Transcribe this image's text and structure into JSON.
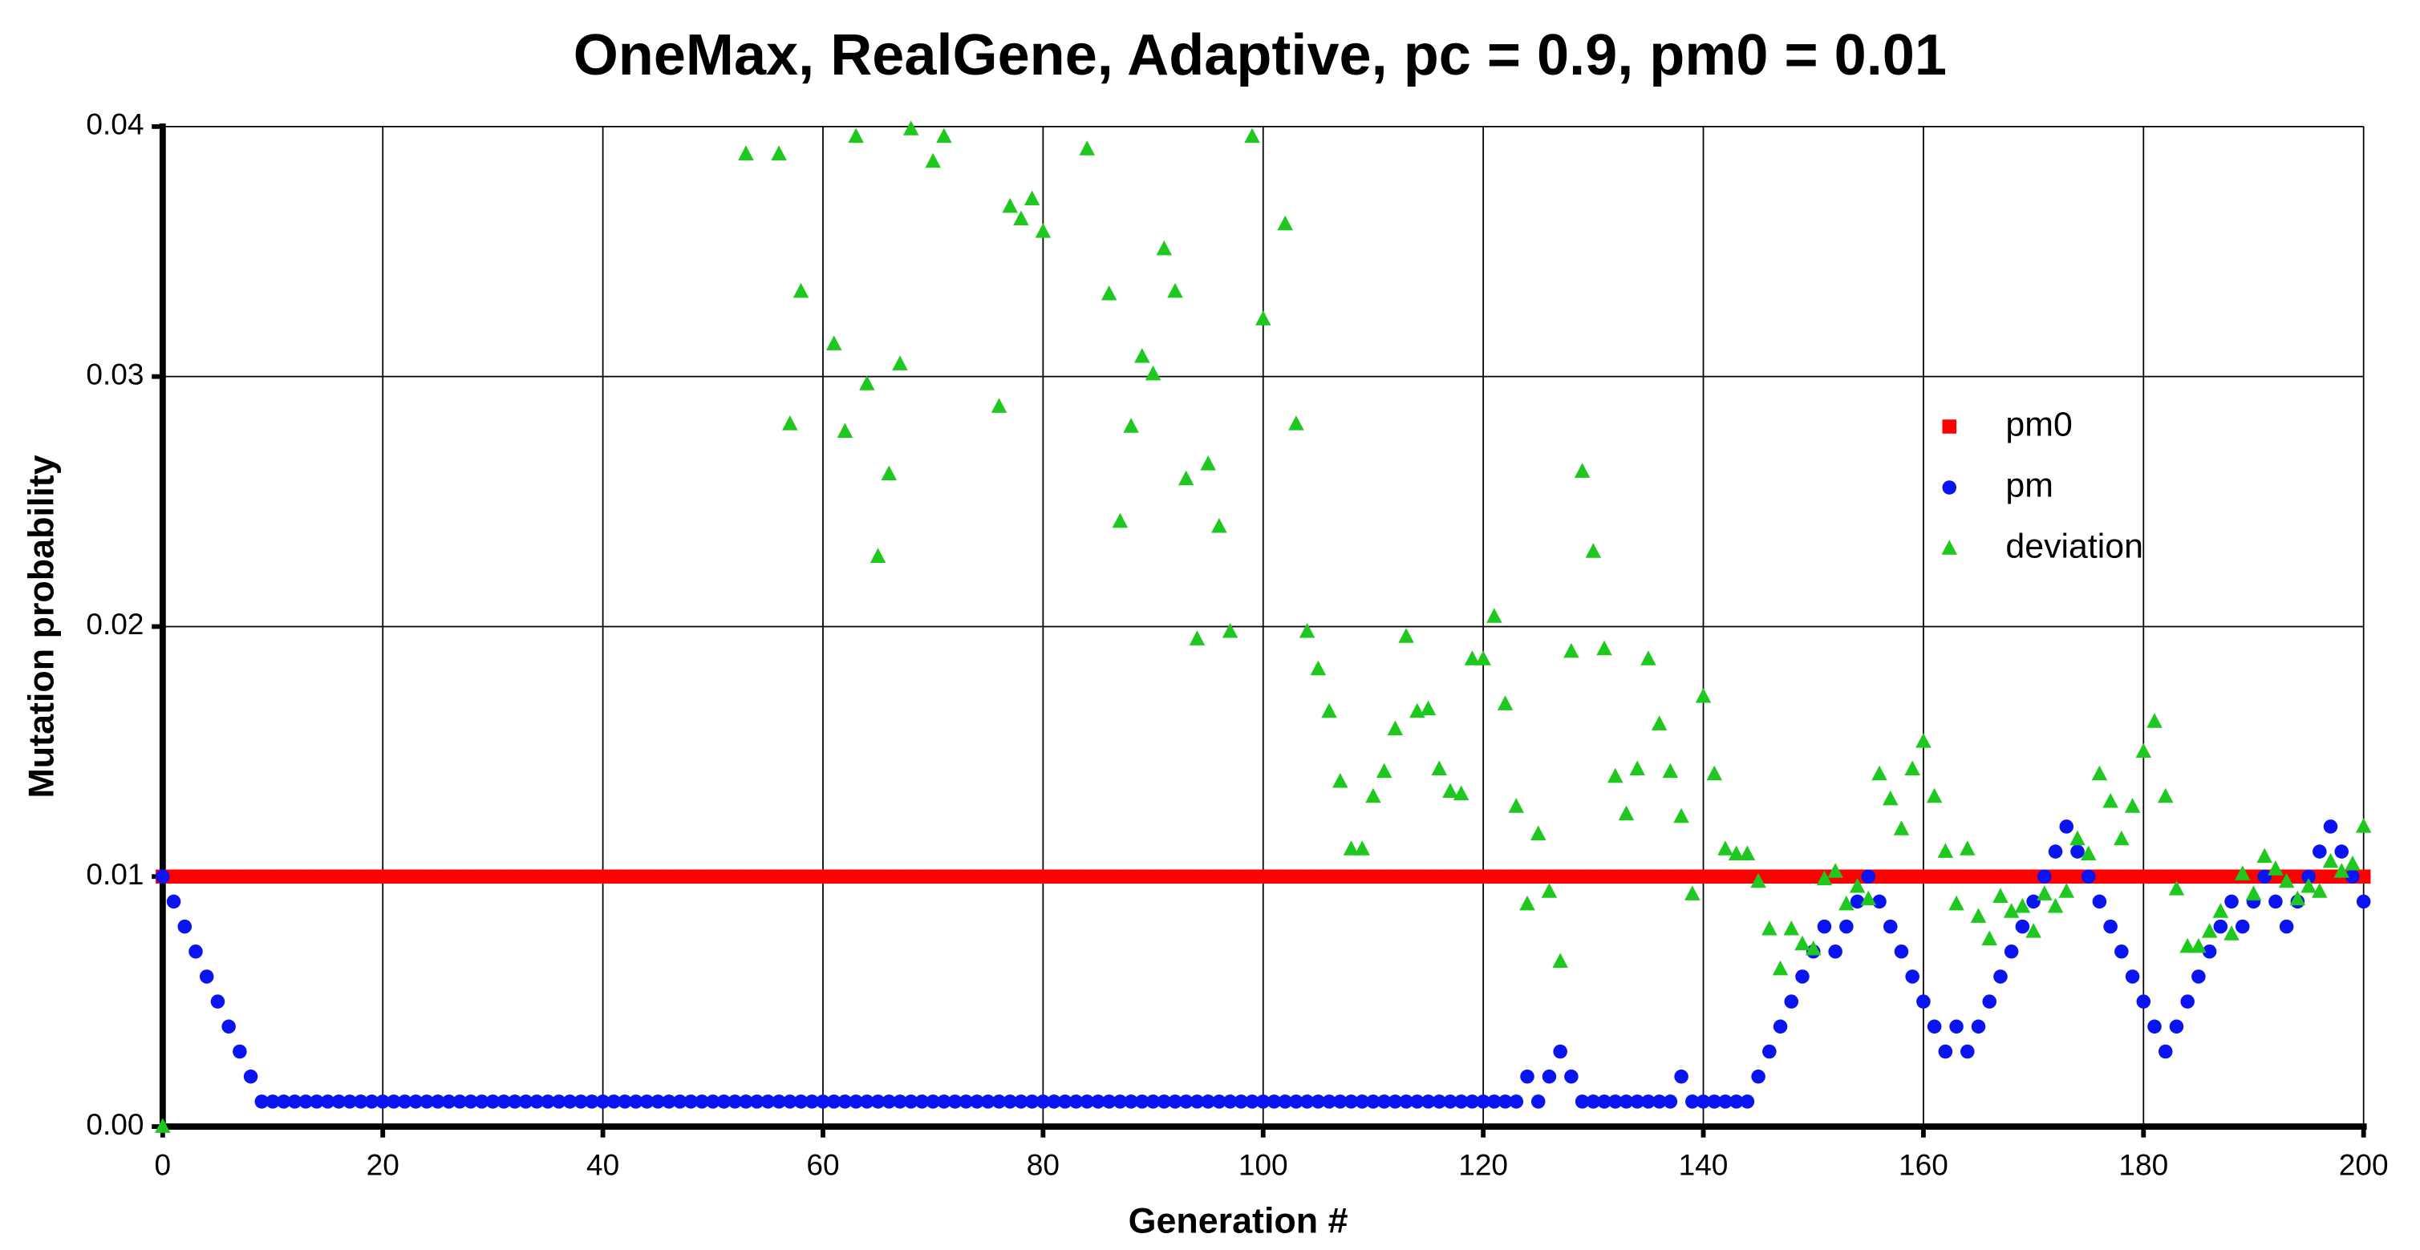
{
  "chart_data": {
    "type": "scatter",
    "title": "OneMax, RealGene, Adaptive, pc = 0.9, pm0 = 0.01",
    "xlabel": "Generation #",
    "ylabel": "Mutation probability",
    "xlim": [
      0,
      200
    ],
    "ylim": [
      0,
      0.04
    ],
    "xticks": [
      0,
      20,
      40,
      60,
      80,
      100,
      120,
      140,
      160,
      180,
      200
    ],
    "yticks": [
      {
        "value": 0,
        "label": "0.00"
      },
      0.01,
      0.02,
      0.03,
      0.04
    ],
    "grid": true,
    "legend_position": "upper right",
    "x": [
      0,
      1,
      2,
      3,
      4,
      5,
      6,
      7,
      8,
      9,
      10,
      11,
      12,
      13,
      14,
      15,
      16,
      17,
      18,
      19,
      20,
      21,
      22,
      23,
      24,
      25,
      26,
      27,
      28,
      29,
      30,
      31,
      32,
      33,
      34,
      35,
      36,
      37,
      38,
      39,
      40,
      41,
      42,
      43,
      44,
      45,
      46,
      47,
      48,
      49,
      50,
      51,
      52,
      53,
      54,
      55,
      56,
      57,
      58,
      59,
      60,
      61,
      62,
      63,
      64,
      65,
      66,
      67,
      68,
      69,
      70,
      71,
      72,
      73,
      74,
      75,
      76,
      77,
      78,
      79,
      80,
      81,
      82,
      83,
      84,
      85,
      86,
      87,
      88,
      89,
      90,
      91,
      92,
      93,
      94,
      95,
      96,
      97,
      98,
      99,
      100,
      101,
      102,
      103,
      104,
      105,
      106,
      107,
      108,
      109,
      110,
      111,
      112,
      113,
      114,
      115,
      116,
      117,
      118,
      119,
      120,
      121,
      122,
      123,
      124,
      125,
      126,
      127,
      128,
      129,
      130,
      131,
      132,
      133,
      134,
      135,
      136,
      137,
      138,
      139,
      140,
      141,
      142,
      143,
      144,
      145,
      146,
      147,
      148,
      149,
      150,
      151,
      152,
      153,
      154,
      155,
      156,
      157,
      158,
      159,
      160,
      161,
      162,
      163,
      164,
      165,
      166,
      167,
      168,
      169,
      170,
      171,
      172,
      173,
      174,
      175,
      176,
      177,
      178,
      179,
      180,
      181,
      182,
      183,
      184,
      185,
      186,
      187,
      188,
      189,
      190,
      191,
      192,
      193,
      194,
      195,
      196,
      197,
      198,
      199,
      200
    ],
    "series": [
      {
        "name": "pm0",
        "color": "#ff0000",
        "marker": "square",
        "values": [
          0.01,
          0.01,
          0.01,
          0.01,
          0.01,
          0.01,
          0.01,
          0.01,
          0.01,
          0.01,
          0.01,
          0.01,
          0.01,
          0.01,
          0.01,
          0.01,
          0.01,
          0.01,
          0.01,
          0.01,
          0.01,
          0.01,
          0.01,
          0.01,
          0.01,
          0.01,
          0.01,
          0.01,
          0.01,
          0.01,
          0.01,
          0.01,
          0.01,
          0.01,
          0.01,
          0.01,
          0.01,
          0.01,
          0.01,
          0.01,
          0.01,
          0.01,
          0.01,
          0.01,
          0.01,
          0.01,
          0.01,
          0.01,
          0.01,
          0.01,
          0.01,
          0.01,
          0.01,
          0.01,
          0.01,
          0.01,
          0.01,
          0.01,
          0.01,
          0.01,
          0.01,
          0.01,
          0.01,
          0.01,
          0.01,
          0.01,
          0.01,
          0.01,
          0.01,
          0.01,
          0.01,
          0.01,
          0.01,
          0.01,
          0.01,
          0.01,
          0.01,
          0.01,
          0.01,
          0.01,
          0.01,
          0.01,
          0.01,
          0.01,
          0.01,
          0.01,
          0.01,
          0.01,
          0.01,
          0.01,
          0.01,
          0.01,
          0.01,
          0.01,
          0.01,
          0.01,
          0.01,
          0.01,
          0.01,
          0.01,
          0.01,
          0.01,
          0.01,
          0.01,
          0.01,
          0.01,
          0.01,
          0.01,
          0.01,
          0.01,
          0.01,
          0.01,
          0.01,
          0.01,
          0.01,
          0.01,
          0.01,
          0.01,
          0.01,
          0.01,
          0.01,
          0.01,
          0.01,
          0.01,
          0.01,
          0.01,
          0.01,
          0.01,
          0.01,
          0.01,
          0.01,
          0.01,
          0.01,
          0.01,
          0.01,
          0.01,
          0.01,
          0.01,
          0.01,
          0.01,
          0.01,
          0.01,
          0.01,
          0.01,
          0.01,
          0.01,
          0.01,
          0.01,
          0.01,
          0.01,
          0.01,
          0.01,
          0.01,
          0.01,
          0.01,
          0.01,
          0.01,
          0.01,
          0.01,
          0.01,
          0.01,
          0.01,
          0.01,
          0.01,
          0.01,
          0.01,
          0.01,
          0.01,
          0.01,
          0.01,
          0.01,
          0.01,
          0.01,
          0.01,
          0.01,
          0.01,
          0.01,
          0.01,
          0.01,
          0.01,
          0.01,
          0.01,
          0.01,
          0.01,
          0.01,
          0.01,
          0.01,
          0.01,
          0.01,
          0.01,
          0.01,
          0.01,
          0.01,
          0.01,
          0.01,
          0.01,
          0.01,
          0.01,
          0.01,
          0.01,
          0.01
        ]
      },
      {
        "name": "pm",
        "color": "#0a14f0",
        "marker": "circle",
        "values": [
          0.01,
          0.009,
          0.008,
          0.007,
          0.006,
          0.005,
          0.004,
          0.003,
          0.002,
          0.001,
          0.001,
          0.001,
          0.001,
          0.001,
          0.001,
          0.001,
          0.001,
          0.001,
          0.001,
          0.001,
          0.001,
          0.001,
          0.001,
          0.001,
          0.001,
          0.001,
          0.001,
          0.001,
          0.001,
          0.001,
          0.001,
          0.001,
          0.001,
          0.001,
          0.001,
          0.001,
          0.001,
          0.001,
          0.001,
          0.001,
          0.001,
          0.001,
          0.001,
          0.001,
          0.001,
          0.001,
          0.001,
          0.001,
          0.001,
          0.001,
          0.001,
          0.001,
          0.001,
          0.001,
          0.001,
          0.001,
          0.001,
          0.001,
          0.001,
          0.001,
          0.001,
          0.001,
          0.001,
          0.001,
          0.001,
          0.001,
          0.001,
          0.001,
          0.001,
          0.001,
          0.001,
          0.001,
          0.001,
          0.001,
          0.001,
          0.001,
          0.001,
          0.001,
          0.001,
          0.001,
          0.001,
          0.001,
          0.001,
          0.001,
          0.001,
          0.001,
          0.001,
          0.001,
          0.001,
          0.001,
          0.001,
          0.001,
          0.001,
          0.001,
          0.001,
          0.001,
          0.001,
          0.001,
          0.001,
          0.001,
          0.001,
          0.001,
          0.001,
          0.001,
          0.001,
          0.001,
          0.001,
          0.001,
          0.001,
          0.001,
          0.001,
          0.001,
          0.001,
          0.001,
          0.001,
          0.001,
          0.001,
          0.001,
          0.001,
          0.001,
          0.001,
          0.001,
          0.001,
          0.001,
          0.002,
          0.001,
          0.002,
          0.003,
          0.002,
          0.001,
          0.001,
          0.001,
          0.001,
          0.001,
          0.001,
          0.001,
          0.001,
          0.001,
          0.002,
          0.001,
          0.001,
          0.001,
          0.001,
          0.001,
          0.001,
          0.002,
          0.003,
          0.004,
          0.005,
          0.006,
          0.007,
          0.008,
          0.007,
          0.008,
          0.009,
          0.01,
          0.009,
          0.008,
          0.007,
          0.006,
          0.005,
          0.004,
          0.003,
          0.004,
          0.003,
          0.004,
          0.005,
          0.006,
          0.007,
          0.008,
          0.009,
          0.01,
          0.011,
          0.012,
          0.011,
          0.01,
          0.009,
          0.008,
          0.007,
          0.006,
          0.005,
          0.004,
          0.003,
          0.004,
          0.005,
          0.006,
          0.007,
          0.008,
          0.009,
          0.008,
          0.009,
          0.01,
          0.009,
          0.008,
          0.009,
          0.01,
          0.011,
          0.012,
          0.011,
          0.01,
          0.009
        ]
      },
      {
        "name": "deviation",
        "color": "#1ec81e",
        "marker": "triangle",
        "values": [
          0,
          null,
          null,
          null,
          null,
          null,
          null,
          null,
          null,
          null,
          null,
          null,
          null,
          null,
          null,
          null,
          null,
          null,
          null,
          null,
          null,
          null,
          null,
          null,
          null,
          null,
          null,
          null,
          null,
          null,
          null,
          null,
          null,
          null,
          null,
          null,
          null,
          null,
          null,
          null,
          null,
          null,
          null,
          null,
          null,
          null,
          null,
          null,
          null,
          null,
          null,
          null,
          null,
          0.0389,
          null,
          null,
          0.0389,
          0.0281,
          0.0334,
          null,
          null,
          0.0313,
          0.0278,
          0.0396,
          0.0297,
          0.0228,
          0.0261,
          0.0305,
          0.0399,
          null,
          0.0386,
          0.0396,
          null,
          null,
          null,
          null,
          0.0288,
          0.0368,
          0.0363,
          0.0371,
          0.0358,
          null,
          null,
          null,
          0.0391,
          null,
          0.0333,
          0.0242,
          0.028,
          0.0308,
          0.0301,
          0.0351,
          0.0334,
          0.0259,
          0.0195,
          0.0265,
          0.024,
          0.0198,
          null,
          0.0396,
          0.0323,
          null,
          0.0361,
          0.0281,
          0.0198,
          0.0183,
          0.0166,
          0.0138,
          0.0111,
          0.0111,
          0.0132,
          0.0142,
          0.0159,
          0.0196,
          0.0166,
          0.0167,
          0.0143,
          0.0134,
          0.0133,
          0.0187,
          0.0187,
          0.0204,
          0.0169,
          0.0128,
          0.0089,
          0.0117,
          0.0094,
          0.0066,
          0.019,
          0.0262,
          0.023,
          0.0191,
          0.014,
          0.0125,
          0.0143,
          0.0187,
          0.0161,
          0.0142,
          0.0124,
          0.0093,
          0.0172,
          0.0141,
          0.0111,
          0.0109,
          0.0109,
          0.0098,
          0.0079,
          0.0063,
          0.0079,
          0.0073,
          0.0071,
          0.0099,
          0.0102,
          0.0089,
          0.0096,
          0.0091,
          0.0141,
          0.0131,
          0.0119,
          0.0143,
          0.0154,
          0.0132,
          0.011,
          0.0089,
          0.0111,
          0.0084,
          0.0075,
          0.0092,
          0.0086,
          0.0088,
          0.0078,
          0.0093,
          0.0088,
          0.0094,
          0.0115,
          0.0109,
          0.0141,
          0.013,
          0.0115,
          0.0128,
          0.015,
          0.0162,
          0.0132,
          0.0095,
          0.0072,
          0.0072,
          0.0078,
          0.0086,
          0.0077,
          0.0101,
          0.0093,
          0.0108,
          0.0103,
          0.0098,
          0.0091,
          0.0096,
          0.0094,
          0.0106,
          0.0102,
          0.0105,
          0.012
        ]
      }
    ]
  }
}
